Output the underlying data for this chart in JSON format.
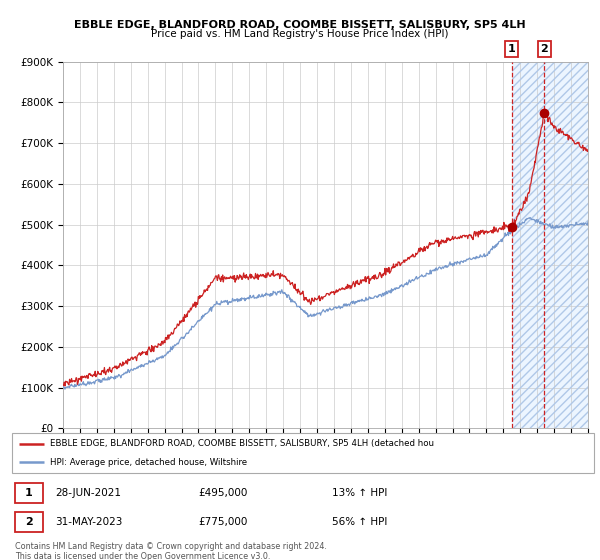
{
  "title1": "EBBLE EDGE, BLANDFORD ROAD, COOMBE BISSETT, SALISBURY, SP5 4LH",
  "title2": "Price paid vs. HM Land Registry's House Price Index (HPI)",
  "ylabel_ticks": [
    "£0",
    "£100K",
    "£200K",
    "£300K",
    "£400K",
    "£500K",
    "£600K",
    "£700K",
    "£800K",
    "£900K"
  ],
  "ylim": [
    0,
    900000
  ],
  "xlim_start": 1995.0,
  "xlim_end": 2026.0,
  "red_line_color": "#cc2222",
  "blue_line_color": "#7799cc",
  "marker_color": "#aa0000",
  "dashed_color": "#cc2222",
  "highlight_fill": "#ddeeff",
  "sale1_x": 2021.49,
  "sale1_y": 495000,
  "sale1_label": "1",
  "sale2_x": 2023.42,
  "sale2_y": 775000,
  "sale2_label": "2",
  "legend_line1": "EBBLE EDGE, BLANDFORD ROAD, COOMBE BISSETT, SALISBURY, SP5 4LH (detached hou",
  "legend_line2": "HPI: Average price, detached house, Wiltshire",
  "table_row1_num": "1",
  "table_row1_date": "28-JUN-2021",
  "table_row1_price": "£495,000",
  "table_row1_hpi": "13% ↑ HPI",
  "table_row2_num": "2",
  "table_row2_date": "31-MAY-2023",
  "table_row2_price": "£775,000",
  "table_row2_hpi": "56% ↑ HPI",
  "footer": "Contains HM Land Registry data © Crown copyright and database right 2024.\nThis data is licensed under the Open Government Licence v3.0.",
  "highlight_start": 2021.49,
  "highlight_end": 2026.0
}
